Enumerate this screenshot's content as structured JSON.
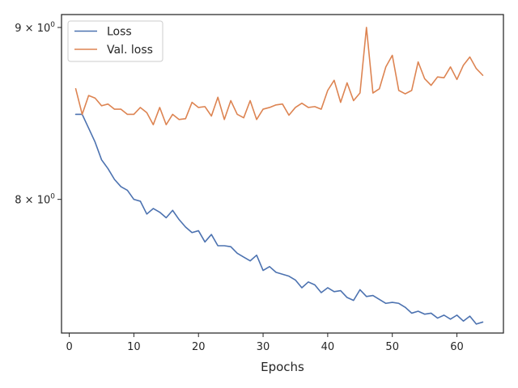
{
  "chart_data": {
    "type": "line",
    "title": "",
    "xlabel": "Epochs",
    "ylabel": "",
    "xlim": [
      -1.2,
      67.2
    ],
    "ylim": [
      7.3,
      9.08
    ],
    "yscale": "log",
    "x_ticks": [
      0,
      10,
      20,
      30,
      40,
      50,
      60
    ],
    "x_tick_labels": [
      "0",
      "10",
      "20",
      "30",
      "40",
      "50",
      "60"
    ],
    "y_ticks": [
      8,
      9
    ],
    "y_tick_labels": [
      {
        "base": "8",
        "sep": "×",
        "power": "10",
        "exp": "0"
      },
      {
        "base": "9",
        "sep": "×",
        "power": "10",
        "exp": "0"
      }
    ],
    "grid": false,
    "legend_position": "top-left",
    "series": [
      {
        "name": "Loss",
        "color": "#4c72b0",
        "x": [
          1,
          2,
          3,
          4,
          5,
          6,
          7,
          8,
          9,
          10,
          11,
          12,
          13,
          14,
          15,
          16,
          17,
          18,
          19,
          20,
          21,
          22,
          23,
          24,
          25,
          26,
          27,
          28,
          29,
          30,
          31,
          32,
          33,
          34,
          35,
          36,
          37,
          38,
          39,
          40,
          41,
          42,
          43,
          44,
          45,
          46,
          47,
          48,
          49,
          50,
          51,
          52,
          53,
          54,
          55,
          56,
          57,
          58,
          59,
          60,
          61,
          62,
          63,
          64
        ],
        "values": [
          8.48,
          8.48,
          8.4,
          8.32,
          8.22,
          8.17,
          8.11,
          8.07,
          8.05,
          8.0,
          7.99,
          7.92,
          7.95,
          7.93,
          7.9,
          7.94,
          7.89,
          7.85,
          7.82,
          7.83,
          7.77,
          7.81,
          7.75,
          7.75,
          7.745,
          7.71,
          7.69,
          7.67,
          7.7,
          7.62,
          7.64,
          7.61,
          7.6,
          7.59,
          7.57,
          7.53,
          7.56,
          7.545,
          7.505,
          7.53,
          7.51,
          7.515,
          7.48,
          7.465,
          7.52,
          7.485,
          7.49,
          7.47,
          7.45,
          7.455,
          7.45,
          7.43,
          7.4,
          7.41,
          7.395,
          7.4,
          7.375,
          7.39,
          7.37,
          7.39,
          7.36,
          7.385,
          7.345,
          7.355
        ]
      },
      {
        "name": "Val. loss",
        "color": "#dd8452",
        "x": [
          1,
          2,
          3,
          4,
          5,
          6,
          7,
          8,
          9,
          10,
          11,
          12,
          13,
          14,
          15,
          16,
          17,
          18,
          19,
          20,
          21,
          22,
          23,
          24,
          25,
          26,
          27,
          28,
          29,
          30,
          31,
          32,
          33,
          34,
          35,
          36,
          37,
          38,
          39,
          40,
          41,
          42,
          43,
          44,
          45,
          46,
          47,
          48,
          49,
          50,
          51,
          52,
          53,
          54,
          55,
          56,
          57,
          58,
          59,
          60,
          61,
          62,
          63,
          64
        ],
        "values": [
          8.63,
          8.48,
          8.59,
          8.575,
          8.53,
          8.54,
          8.51,
          8.51,
          8.48,
          8.48,
          8.52,
          8.49,
          8.42,
          8.52,
          8.42,
          8.48,
          8.45,
          8.455,
          8.55,
          8.52,
          8.525,
          8.47,
          8.58,
          8.45,
          8.56,
          8.48,
          8.46,
          8.56,
          8.45,
          8.51,
          8.52,
          8.535,
          8.54,
          8.475,
          8.52,
          8.545,
          8.52,
          8.525,
          8.51,
          8.62,
          8.68,
          8.55,
          8.665,
          8.56,
          8.605,
          9.0,
          8.605,
          8.63,
          8.76,
          8.83,
          8.62,
          8.6,
          8.62,
          8.79,
          8.69,
          8.65,
          8.7,
          8.695,
          8.76,
          8.685,
          8.77,
          8.82,
          8.75,
          8.71
        ]
      }
    ]
  }
}
